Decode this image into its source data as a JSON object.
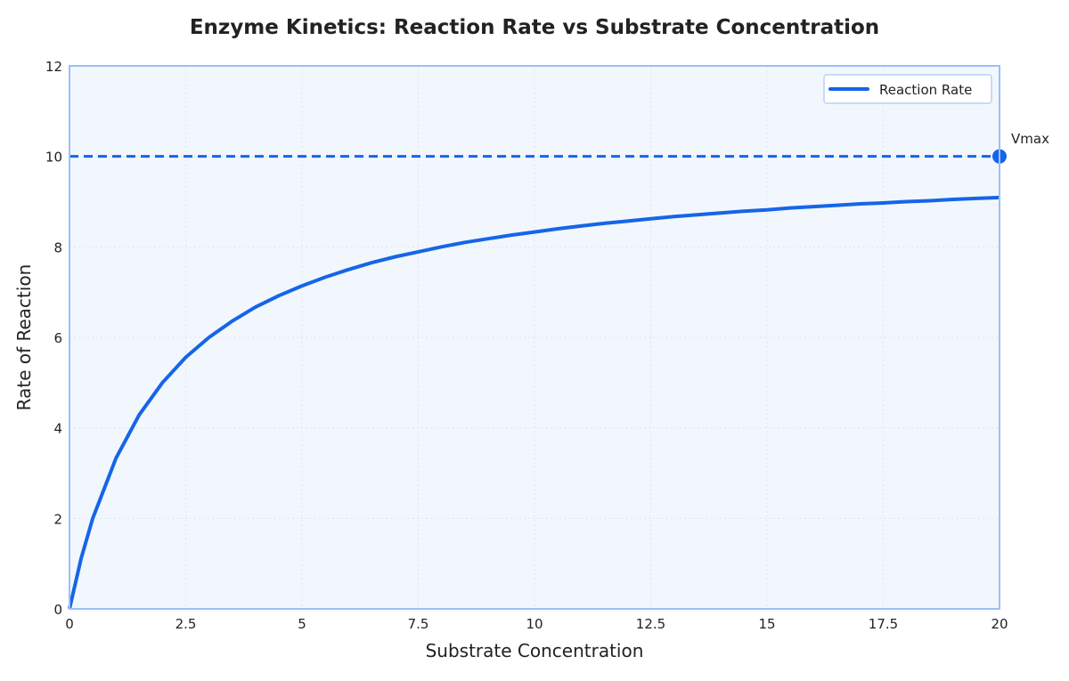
{
  "chart_data": {
    "type": "line",
    "title": "Enzyme Kinetics: Reaction Rate vs Substrate Concentration",
    "xlabel": "Substrate Concentration",
    "ylabel": "Rate of Reaction",
    "xlim": [
      0,
      20
    ],
    "ylim": [
      0,
      12
    ],
    "xticks": [
      "0",
      "2.5",
      "5",
      "7.5",
      "10",
      "12.5",
      "15",
      "17.5",
      "20"
    ],
    "yticks": [
      "0",
      "2",
      "4",
      "6",
      "8",
      "10",
      "12"
    ],
    "grid": true,
    "legend_placement": "top-right",
    "series": [
      {
        "name": "Reaction Rate",
        "color": "#1565e8",
        "x": [
          0,
          0.25,
          0.5,
          1,
          1.5,
          2,
          2.5,
          3,
          3.5,
          4,
          4.5,
          5,
          5.5,
          6,
          6.5,
          7,
          7.5,
          8,
          8.5,
          9,
          9.5,
          10,
          10.5,
          11,
          11.5,
          12,
          12.5,
          13,
          13.5,
          14,
          14.5,
          15,
          15.5,
          16,
          16.5,
          17,
          17.5,
          18,
          18.5,
          19,
          19.5,
          20
        ],
        "y": [
          0,
          1.11,
          2.0,
          3.33,
          4.29,
          5.0,
          5.56,
          6.0,
          6.36,
          6.67,
          6.92,
          7.14,
          7.33,
          7.5,
          7.65,
          7.78,
          7.89,
          8.0,
          8.1,
          8.18,
          8.26,
          8.33,
          8.4,
          8.46,
          8.52,
          8.57,
          8.62,
          8.67,
          8.71,
          8.75,
          8.79,
          8.82,
          8.86,
          8.89,
          8.92,
          8.95,
          8.97,
          9.0,
          9.02,
          9.05,
          9.07,
          9.09
        ]
      }
    ],
    "annotations": [
      {
        "type": "hline",
        "y": 10,
        "style": "dashed",
        "color": "#1565e8"
      },
      {
        "type": "point",
        "x": 20,
        "y": 10,
        "label": "Vmax",
        "color": "#1565e8"
      }
    ],
    "colors": {
      "plot_bg": "#f2f7fe",
      "frame": "#9cc0f5",
      "grid": "#dde6f2"
    }
  }
}
